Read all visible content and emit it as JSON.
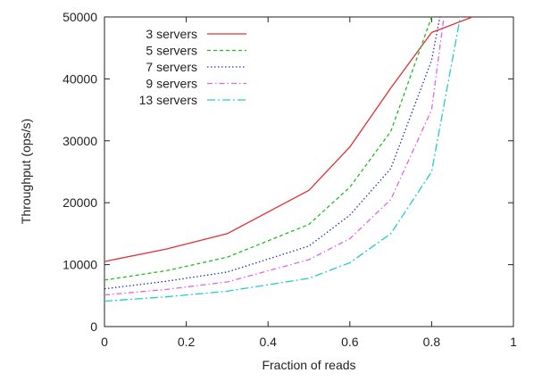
{
  "chart_data": {
    "type": "line",
    "title": "",
    "xlabel": "Fraction of reads",
    "ylabel": "Throughput (ops/s)",
    "xlim": [
      0,
      1
    ],
    "ylim": [
      0,
      50000
    ],
    "xticks": [
      0,
      0.2,
      0.4,
      0.6,
      0.8,
      1
    ],
    "xtick_labels": [
      "0",
      "0.2",
      "0.4",
      "0.6",
      "0.8",
      "1"
    ],
    "yticks": [
      0,
      10000,
      20000,
      30000,
      40000,
      50000
    ],
    "ytick_labels": [
      "0",
      "10000",
      "20000",
      "30000",
      "40000",
      "50000"
    ],
    "grid": false,
    "legend_position": "top-left",
    "series": [
      {
        "name": "3 servers",
        "color": "#e03030",
        "dash": "solid",
        "x": [
          0,
          0.15,
          0.3,
          0.5,
          0.6,
          0.7,
          0.8,
          0.9
        ],
        "y": [
          10500,
          12500,
          15000,
          22000,
          29000,
          38500,
          47500,
          50000
        ]
      },
      {
        "name": "5 servers",
        "color": "#22bb22",
        "dash": "dashed",
        "x": [
          0,
          0.15,
          0.3,
          0.5,
          0.6,
          0.7,
          0.8
        ],
        "y": [
          7500,
          9000,
          11200,
          16500,
          22500,
          31500,
          50000
        ]
      },
      {
        "name": "7 servers",
        "color": "#2233aa",
        "dash": "dotted",
        "x": [
          0,
          0.15,
          0.3,
          0.5,
          0.6,
          0.7,
          0.8,
          0.82
        ],
        "y": [
          6100,
          7300,
          8800,
          13000,
          18000,
          25500,
          43000,
          50000
        ]
      },
      {
        "name": "9 servers",
        "color": "#e066e0",
        "dash": "dash-dot",
        "x": [
          0,
          0.15,
          0.3,
          0.5,
          0.6,
          0.7,
          0.8,
          0.83
        ],
        "y": [
          5100,
          6000,
          7200,
          10800,
          14200,
          20500,
          35000,
          50000
        ]
      },
      {
        "name": "13 servers",
        "color": "#22cccc",
        "dash": "long-dash-dot",
        "x": [
          0,
          0.15,
          0.3,
          0.5,
          0.6,
          0.7,
          0.8,
          0.87
        ],
        "y": [
          4100,
          4800,
          5700,
          7800,
          10300,
          15000,
          25000,
          50000
        ]
      }
    ]
  }
}
